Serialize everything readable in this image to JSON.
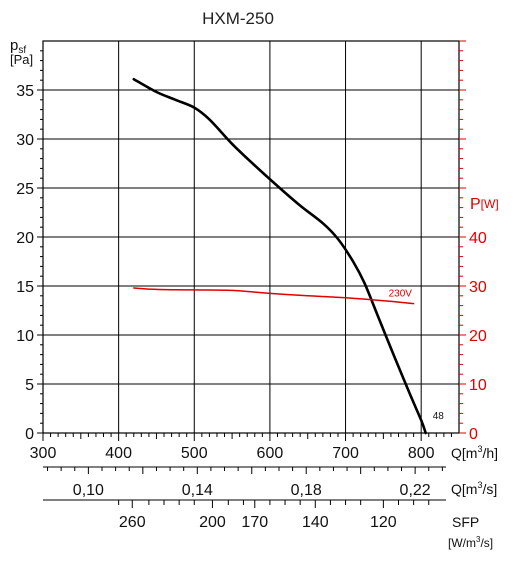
{
  "chart_data": {
    "type": "line",
    "title": "HXM-250",
    "y_left": {
      "label": "p",
      "label_sub": "sf",
      "unit": "[Pa]",
      "range": [
        0,
        40
      ],
      "ticks": [
        0,
        5,
        10,
        15,
        20,
        25,
        30,
        35
      ]
    },
    "y_right": {
      "label": "P",
      "unit": "[W]",
      "range": [
        0,
        80
      ],
      "ticks": [
        0,
        10,
        20,
        30,
        40
      ],
      "color": "#e00000"
    },
    "x_axis_1": {
      "label": "Q[m",
      "label_sup": "3",
      "label_end": "/h]",
      "range": [
        300,
        850
      ],
      "ticks": [
        300,
        400,
        500,
        600,
        700,
        800
      ]
    },
    "x_axis_2": {
      "label": "Q[m",
      "label_sup": "3",
      "label_end": "/s]",
      "ticks": [
        {
          "value": 0.1,
          "text": "0,10"
        },
        {
          "value": 0.14,
          "text": "0,14"
        },
        {
          "value": 0.18,
          "text": "0,18"
        },
        {
          "value": 0.22,
          "text": "0,22"
        }
      ]
    },
    "x_axis_3": {
      "label": "SFP",
      "unit_pre": "[W/m",
      "unit_sup": "3",
      "unit_end": "/s]",
      "ticks": [
        {
          "q": 418,
          "text": "260"
        },
        {
          "q": 524,
          "text": "200"
        },
        {
          "q": 580,
          "text": "170"
        },
        {
          "q": 660,
          "text": "140"
        },
        {
          "q": 750,
          "text": "120"
        }
      ]
    },
    "grid": true,
    "series": [
      {
        "axis": "left",
        "color": "#000000",
        "end_label": "48",
        "points": [
          [
            420,
            36.1
          ],
          [
            450,
            34.8
          ],
          [
            475,
            34.0
          ],
          [
            500,
            33.2
          ],
          [
            520,
            32.0
          ],
          [
            550,
            29.5
          ],
          [
            580,
            27.3
          ],
          [
            610,
            25.2
          ],
          [
            640,
            23.2
          ],
          [
            670,
            21.4
          ],
          [
            690,
            19.8
          ],
          [
            710,
            17.5
          ],
          [
            725,
            15.3
          ],
          [
            745,
            11.5
          ],
          [
            765,
            7.7
          ],
          [
            785,
            4.0
          ],
          [
            800,
            1.3
          ],
          [
            806,
            0.0
          ]
        ]
      },
      {
        "axis": "right",
        "color": "#e00000",
        "name": "230V",
        "points": [
          [
            420,
            29.6
          ],
          [
            450,
            29.3
          ],
          [
            500,
            29.2
          ],
          [
            550,
            29.1
          ],
          [
            600,
            28.5
          ],
          [
            650,
            28.0
          ],
          [
            700,
            27.6
          ],
          [
            750,
            27.0
          ],
          [
            790,
            26.4
          ]
        ]
      }
    ]
  }
}
